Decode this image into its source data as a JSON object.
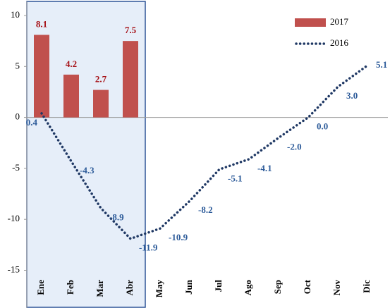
{
  "chart_data": {
    "type": "bar-line",
    "categories": [
      "Ene",
      "Feb",
      "Mar",
      "Abr",
      "May",
      "Jun",
      "Jul",
      "Ago",
      "Sep",
      "Oct",
      "Nov",
      "Dic"
    ],
    "series": [
      {
        "name": "2017",
        "type": "bar",
        "color": "#c0504d",
        "label_color": "#a50f15",
        "values": [
          8.1,
          4.2,
          2.7,
          7.5,
          null,
          null,
          null,
          null,
          null,
          null,
          null,
          null
        ]
      },
      {
        "name": "2016",
        "type": "line",
        "style": "dotted",
        "color": "#1f3864",
        "label_color": "#2e5c9a",
        "values": [
          0.4,
          -4.3,
          -8.9,
          -11.9,
          -10.9,
          -8.2,
          -5.1,
          -4.1,
          -2.0,
          0.0,
          3.0,
          5.1
        ],
        "value_labels": [
          "0.4",
          "-4.3",
          "-8.9",
          "-11.9",
          "-10.9",
          "-8.2",
          "-5.1",
          "-4.1",
          "-2.0",
          "0.0",
          "3.0",
          "5.1"
        ]
      }
    ],
    "ylim": [
      -18.7,
      10
    ],
    "yticks": [
      -15,
      -10,
      -5,
      0,
      5,
      10
    ],
    "legend": "top-right"
  }
}
